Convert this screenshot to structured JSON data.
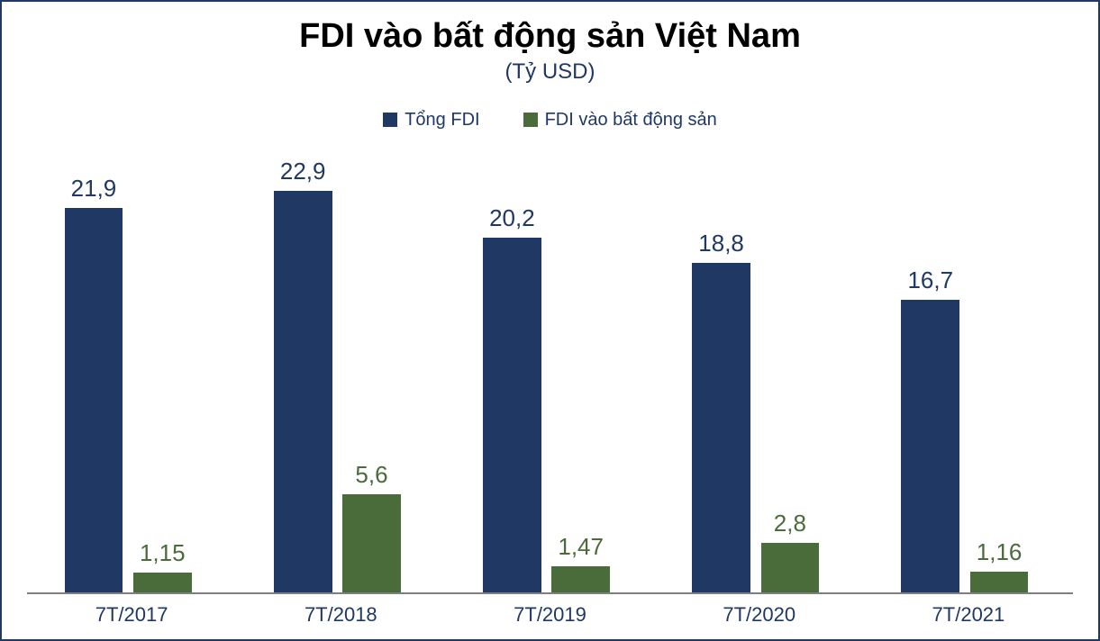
{
  "chart": {
    "type": "bar",
    "title": "FDI vào bất động sản Việt Nam",
    "title_fontsize": 38,
    "title_color": "#000000",
    "subtitle": "(Tỷ USD)",
    "subtitle_fontsize": 24,
    "subtitle_color": "#1f3864",
    "background_color": "#ffffff",
    "frame_border_color": "#1f3864",
    "axis_line_color": "#7f7f7f",
    "ylim": [
      0,
      25
    ],
    "categories": [
      "7T/2017",
      "7T/2018",
      "7T/2019",
      "7T/2020",
      "7T/2021"
    ],
    "x_label_fontsize": 22,
    "x_label_color": "#1f3864",
    "legend": {
      "fontsize": 20,
      "text_color": "#1f3864",
      "items": [
        {
          "label": "Tổng FDI",
          "color": "#1f3864"
        },
        {
          "label": "FDI vào bất động sản",
          "color": "#4a6b3a"
        }
      ]
    },
    "series": [
      {
        "name": "Tổng FDI",
        "color": "#1f3864",
        "label_color": "#1f3864",
        "label_fontsize": 26,
        "bar_width_pct": 28,
        "bar_offset_pct": 18,
        "values": [
          21.9,
          22.9,
          20.2,
          18.8,
          16.7
        ],
        "value_labels": [
          "21,9",
          "22,9",
          "20,2",
          "18,8",
          "16,7"
        ]
      },
      {
        "name": "FDI vào bất động sản",
        "color": "#4a6b3a",
        "label_color": "#4a6b3a",
        "label_fontsize": 26,
        "bar_width_pct": 28,
        "bar_offset_pct": 51,
        "values": [
          1.15,
          5.6,
          1.47,
          2.8,
          1.16
        ],
        "value_labels": [
          "1,15",
          "5,6",
          "1,47",
          "2,8",
          "1,16"
        ]
      }
    ]
  }
}
